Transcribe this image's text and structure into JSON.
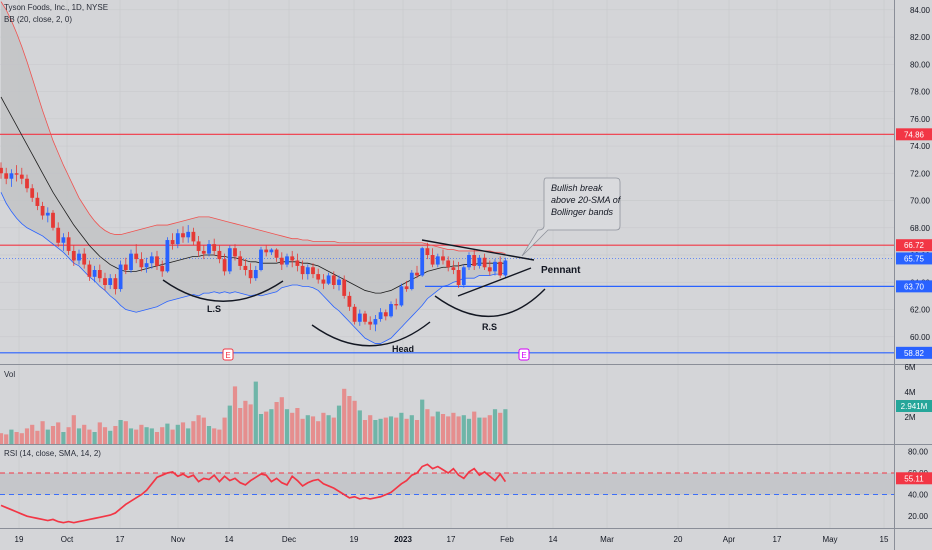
{
  "header": {
    "symbol_line": "Tyson Foods, Inc., 1D, NYSE",
    "bb_line": "BB (20, close, 2, 0)",
    "vol_label": "Vol",
    "rsi_line": "RSI (14, close, SMA, 14, 2)"
  },
  "colors": {
    "background": "#d4d5d8",
    "up": "#2962ff",
    "down": "#e53935",
    "vol_up": "#6fb5a8",
    "vol_down": "#e58e8e",
    "bb_band": "#ef5350",
    "bb_band_lower": "#2962ff",
    "basis": "#1f1f1f",
    "rsi": "#f23645",
    "hline_red": "#f23645",
    "hline_blue": "#2962ff"
  },
  "price_axis": {
    "ticks": [
      "84.00",
      "82.00",
      "80.00",
      "78.00",
      "76.00",
      "74.00",
      "72.00",
      "70.00",
      "68.00",
      "66.00",
      "64.00",
      "62.00",
      "60.00"
    ]
  },
  "price_levels": [
    {
      "label": "74.86",
      "color": "#f23645"
    },
    {
      "label": "66.72",
      "color": "#f23645"
    },
    {
      "label": "65.75",
      "color": "#2962ff"
    },
    {
      "label": "63.70",
      "color": "#2962ff"
    },
    {
      "label": "58.82",
      "color": "#2962ff"
    }
  ],
  "volume_axis": {
    "ticks": [
      "6M",
      "4M",
      "2M"
    ],
    "current": "2.941M"
  },
  "rsi_axis": {
    "ticks": [
      "80.00",
      "60.00",
      "40.00",
      "20.00"
    ],
    "current": "55.11"
  },
  "x_axis": {
    "labels": [
      "19",
      "Oct",
      "17",
      "Nov",
      "14",
      "Dec",
      "19",
      "2023",
      "17",
      "Feb",
      "14",
      "Mar",
      "20",
      "Apr",
      "17",
      "May",
      "15"
    ]
  },
  "annotations": {
    "callout_line1": "Bullish break",
    "callout_line2": "above 20-SMA of",
    "callout_line3": "Bollinger bands",
    "pennant": "Pennant",
    "left_shoulder": "L.S",
    "head": "Head",
    "right_shoulder": "R.S",
    "event_marker": "E"
  },
  "chart_data": {
    "type": "candlestick",
    "title": "Tyson Foods, Inc., 1D, NYSE",
    "ylim": [
      58.0,
      84.5
    ],
    "candles": [
      [
        72.4,
        72.8,
        71.6,
        72.0
      ],
      [
        72.0,
        72.4,
        71.2,
        71.6
      ],
      [
        71.6,
        72.3,
        71.0,
        72.0
      ],
      [
        72.0,
        72.6,
        71.4,
        71.9
      ],
      [
        71.9,
        72.4,
        71.2,
        71.6
      ],
      [
        71.6,
        71.9,
        70.6,
        70.9
      ],
      [
        70.9,
        71.2,
        69.9,
        70.2
      ],
      [
        70.2,
        70.6,
        69.3,
        69.6
      ],
      [
        69.6,
        69.9,
        68.6,
        68.9
      ],
      [
        68.9,
        69.5,
        68.4,
        69.1
      ],
      [
        69.1,
        69.3,
        67.8,
        68.0
      ],
      [
        68.0,
        68.4,
        66.6,
        66.9
      ],
      [
        66.9,
        67.6,
        66.3,
        67.3
      ],
      [
        67.3,
        67.7,
        66.0,
        66.3
      ],
      [
        66.3,
        66.7,
        65.2,
        65.6
      ],
      [
        65.6,
        66.4,
        65.3,
        66.1
      ],
      [
        66.1,
        66.5,
        65.0,
        65.3
      ],
      [
        65.3,
        65.6,
        64.1,
        64.4
      ],
      [
        64.4,
        65.2,
        64.0,
        64.9
      ],
      [
        64.9,
        65.3,
        64.0,
        64.3
      ],
      [
        64.3,
        64.7,
        63.4,
        63.8
      ],
      [
        63.8,
        64.6,
        63.5,
        64.3
      ],
      [
        64.3,
        64.6,
        63.1,
        63.5
      ],
      [
        63.5,
        65.6,
        63.3,
        65.3
      ],
      [
        65.3,
        65.8,
        64.6,
        64.9
      ],
      [
        64.9,
        66.4,
        64.7,
        66.1
      ],
      [
        66.1,
        66.8,
        65.4,
        65.7
      ],
      [
        65.7,
        66.2,
        64.8,
        65.1
      ],
      [
        65.1,
        65.8,
        64.7,
        65.4
      ],
      [
        65.4,
        66.2,
        65.0,
        65.9
      ],
      [
        65.9,
        66.3,
        64.9,
        65.2
      ],
      [
        65.2,
        65.6,
        64.4,
        64.8
      ],
      [
        64.8,
        67.3,
        64.7,
        67.1
      ],
      [
        67.1,
        67.6,
        66.4,
        66.8
      ],
      [
        66.8,
        67.9,
        66.5,
        67.6
      ],
      [
        67.6,
        68.1,
        66.9,
        67.3
      ],
      [
        67.3,
        68.2,
        66.9,
        67.7
      ],
      [
        67.7,
        68.0,
        66.7,
        67.0
      ],
      [
        67.0,
        67.4,
        65.9,
        66.3
      ],
      [
        66.3,
        66.7,
        65.7,
        66.1
      ],
      [
        66.1,
        67.1,
        65.9,
        66.8
      ],
      [
        66.8,
        67.2,
        66.0,
        66.3
      ],
      [
        66.3,
        66.7,
        65.4,
        65.7
      ],
      [
        65.7,
        66.1,
        64.5,
        64.8
      ],
      [
        64.8,
        66.7,
        64.6,
        66.5
      ],
      [
        66.5,
        66.8,
        65.6,
        65.9
      ],
      [
        65.9,
        66.3,
        64.9,
        65.2
      ],
      [
        65.2,
        65.7,
        64.5,
        64.9
      ],
      [
        64.9,
        65.4,
        63.9,
        64.3
      ],
      [
        64.3,
        65.2,
        64.1,
        64.9
      ],
      [
        64.9,
        66.6,
        64.8,
        66.4
      ],
      [
        66.4,
        66.7,
        65.9,
        66.2
      ],
      [
        66.2,
        66.5,
        66.0,
        66.4
      ],
      [
        66.4,
        66.5,
        65.5,
        65.8
      ],
      [
        65.8,
        66.2,
        64.9,
        65.3
      ],
      [
        65.3,
        66.1,
        65.1,
        65.9
      ],
      [
        65.9,
        66.3,
        65.1,
        65.6
      ],
      [
        65.6,
        66.1,
        64.8,
        65.2
      ],
      [
        65.2,
        65.6,
        64.2,
        64.6
      ],
      [
        64.6,
        65.3,
        64.2,
        65.1
      ],
      [
        65.1,
        65.4,
        64.3,
        64.6
      ],
      [
        64.6,
        65.0,
        63.9,
        64.2
      ],
      [
        64.2,
        64.6,
        63.5,
        63.9
      ],
      [
        63.9,
        64.7,
        63.8,
        64.5
      ],
      [
        64.5,
        64.8,
        63.5,
        63.8
      ],
      [
        63.8,
        64.5,
        63.4,
        64.2
      ],
      [
        64.2,
        64.5,
        62.8,
        63.0
      ],
      [
        63.0,
        63.3,
        61.9,
        62.2
      ],
      [
        62.2,
        62.4,
        60.9,
        61.1
      ],
      [
        61.1,
        62.0,
        60.8,
        61.7
      ],
      [
        61.7,
        61.9,
        60.9,
        61.1
      ],
      [
        61.1,
        61.5,
        60.5,
        60.9
      ],
      [
        60.9,
        61.6,
        60.4,
        61.3
      ],
      [
        61.3,
        62.1,
        61.1,
        61.8
      ],
      [
        61.8,
        62.0,
        61.2,
        61.5
      ],
      [
        61.5,
        62.6,
        61.4,
        62.4
      ],
      [
        62.4,
        62.8,
        62.0,
        62.3
      ],
      [
        62.3,
        63.9,
        62.2,
        63.7
      ],
      [
        63.7,
        64.1,
        63.3,
        63.5
      ],
      [
        63.5,
        64.9,
        63.4,
        64.7
      ],
      [
        64.7,
        65.2,
        64.3,
        64.5
      ],
      [
        64.5,
        66.6,
        64.4,
        66.5
      ],
      [
        66.5,
        66.9,
        65.7,
        66.0
      ],
      [
        66.0,
        66.5,
        65.1,
        65.3
      ],
      [
        65.3,
        66.1,
        65.1,
        65.9
      ],
      [
        65.9,
        66.4,
        65.3,
        65.6
      ],
      [
        65.6,
        65.9,
        64.8,
        65.1
      ],
      [
        65.1,
        65.6,
        64.6,
        64.9
      ],
      [
        64.9,
        65.5,
        63.6,
        63.8
      ],
      [
        63.8,
        65.3,
        63.6,
        65.1
      ],
      [
        65.1,
        66.2,
        64.9,
        66.0
      ],
      [
        66.0,
        66.4,
        64.9,
        65.2
      ],
      [
        65.2,
        66.0,
        65.0,
        65.8
      ],
      [
        65.8,
        66.1,
        64.9,
        65.1
      ],
      [
        65.1,
        65.6,
        64.5,
        64.8
      ],
      [
        64.8,
        65.7,
        64.5,
        65.5
      ],
      [
        65.5,
        65.9,
        64.3,
        64.5
      ],
      [
        64.5,
        65.8,
        64.3,
        65.6
      ]
    ],
    "bollinger": {
      "upper": [
        84.6,
        84.0,
        83.2,
        82.3,
        81.3,
        80.2,
        79.0,
        77.8,
        76.6,
        75.5,
        74.4,
        73.5,
        72.6,
        71.8,
        71.0,
        70.2,
        69.6,
        69.0,
        68.5,
        68.1,
        67.8,
        67.6,
        67.5,
        67.5,
        67.6,
        67.7,
        67.8,
        67.9,
        68.0,
        68.1,
        68.2,
        68.2,
        68.2,
        68.3,
        68.4,
        68.5,
        68.6,
        68.7,
        68.8,
        68.8,
        68.8,
        68.7,
        68.6,
        68.5,
        68.4,
        68.3,
        68.2,
        68.1,
        68.0,
        67.9,
        67.8,
        67.7,
        67.6,
        67.5,
        67.4,
        67.3,
        67.2,
        67.2,
        67.1,
        67.1,
        67.0,
        67.0,
        67.0,
        67.0,
        67.0,
        66.9,
        66.9,
        66.9,
        66.9,
        66.9,
        66.9,
        66.9,
        66.9,
        66.9,
        66.9,
        66.9,
        66.9,
        66.9,
        66.9,
        66.9,
        66.9,
        66.9,
        66.8,
        66.7,
        66.6,
        66.5,
        66.4,
        66.4,
        66.3,
        66.3,
        66.3,
        66.3,
        66.3,
        66.3,
        66.3,
        66.2,
        66.2,
        66.1
      ],
      "basis": [
        77.6,
        76.9,
        76.2,
        75.5,
        74.8,
        74.1,
        73.4,
        72.7,
        72.0,
        71.3,
        70.6,
        70.0,
        69.4,
        68.8,
        68.2,
        67.7,
        67.2,
        66.7,
        66.3,
        65.9,
        65.6,
        65.3,
        65.1,
        64.9,
        64.8,
        64.8,
        64.8,
        64.9,
        65.0,
        65.1,
        65.2,
        65.3,
        65.4,
        65.5,
        65.6,
        65.7,
        65.8,
        65.9,
        65.9,
        66.0,
        66.0,
        66.0,
        65.9,
        65.9,
        65.8,
        65.8,
        65.7,
        65.6,
        65.5,
        65.5,
        65.4,
        65.4,
        65.4,
        65.4,
        65.5,
        65.5,
        65.5,
        65.5,
        65.4,
        65.4,
        65.3,
        65.2,
        65.0,
        64.8,
        64.6,
        64.4,
        64.2,
        64.0,
        63.8,
        63.6,
        63.4,
        63.3,
        63.2,
        63.2,
        63.3,
        63.4,
        63.6,
        63.8,
        64.0,
        64.2,
        64.4,
        64.6,
        64.8,
        64.9,
        65.0,
        65.1,
        65.1,
        65.2,
        65.2,
        65.3,
        65.3,
        65.3,
        65.4,
        65.4,
        65.4,
        65.4,
        65.4,
        65.4
      ],
      "lower": [
        70.6,
        69.8,
        69.2,
        68.7,
        68.3,
        68.0,
        67.8,
        67.6,
        67.4,
        67.1,
        66.8,
        66.5,
        66.2,
        65.8,
        65.4,
        65.2,
        64.8,
        64.4,
        64.1,
        63.7,
        63.4,
        63.0,
        62.7,
        62.3,
        62.0,
        61.9,
        61.8,
        61.9,
        62.0,
        62.1,
        62.2,
        62.4,
        62.6,
        62.7,
        62.8,
        62.9,
        63.0,
        63.1,
        63.0,
        63.2,
        63.2,
        63.3,
        63.2,
        63.3,
        63.2,
        63.3,
        63.2,
        63.1,
        63.0,
        63.1,
        63.0,
        63.1,
        63.2,
        63.3,
        63.6,
        63.7,
        63.8,
        63.8,
        63.7,
        63.7,
        63.6,
        63.4,
        63.0,
        62.6,
        62.2,
        61.9,
        61.5,
        61.1,
        60.7,
        60.3,
        59.9,
        59.7,
        59.5,
        59.5,
        59.7,
        59.9,
        60.3,
        60.7,
        61.1,
        61.5,
        61.9,
        62.3,
        62.8,
        63.1,
        63.4,
        63.7,
        63.8,
        64.0,
        64.1,
        64.3,
        64.3,
        64.3,
        64.5,
        64.5,
        64.5,
        64.6,
        64.6,
        64.7
      ]
    },
    "volume": [],
    "rsi": [],
    "rsi_levels": [
      60,
      40
    ]
  }
}
